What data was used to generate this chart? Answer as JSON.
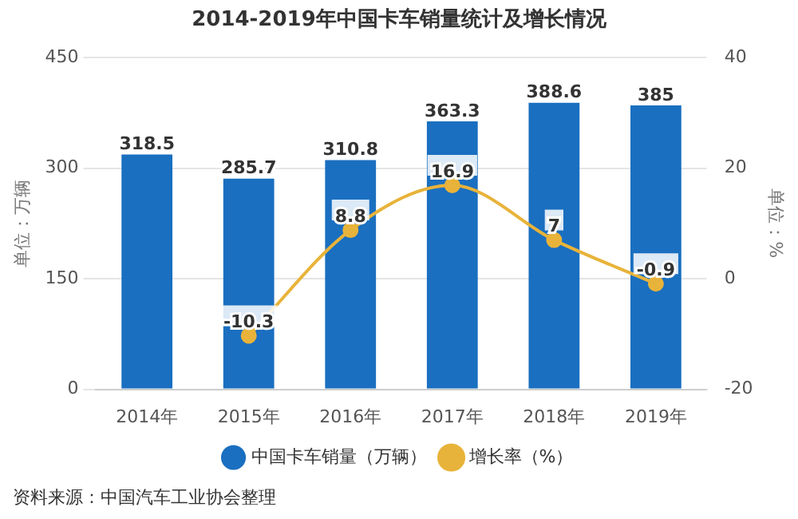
{
  "chart_data": {
    "type": "bar",
    "title": "2014-2019年中国卡车销量统计及增长情况",
    "categories": [
      "2014年",
      "2015年",
      "2016年",
      "2017年",
      "2018年",
      "2019年"
    ],
    "series": [
      {
        "name": "中国卡车销量（万辆）",
        "color": "#1a6fc0",
        "values": [
          318.5,
          285.7,
          310.8,
          363.3,
          388.6,
          385
        ]
      },
      {
        "name": "增长率（%）",
        "type": "line",
        "axis": "y2",
        "color": "#e8b33a",
        "values": [
          null,
          -10.3,
          8.8,
          16.9,
          7,
          -0.9
        ]
      }
    ],
    "ylabel": "单位：万辆",
    "y2label": "单位：%",
    "ylim": [
      0,
      450
    ],
    "yticks": [
      0,
      150,
      300,
      450
    ],
    "y2lim": [
      -20,
      40
    ],
    "y2ticks": [
      -20,
      0,
      20,
      40
    ],
    "grid": "y",
    "legend": "bottom",
    "marker": "circle",
    "data_labels": true,
    "annotations": [
      "资料来源：中国汽车工业协会整理"
    ]
  }
}
